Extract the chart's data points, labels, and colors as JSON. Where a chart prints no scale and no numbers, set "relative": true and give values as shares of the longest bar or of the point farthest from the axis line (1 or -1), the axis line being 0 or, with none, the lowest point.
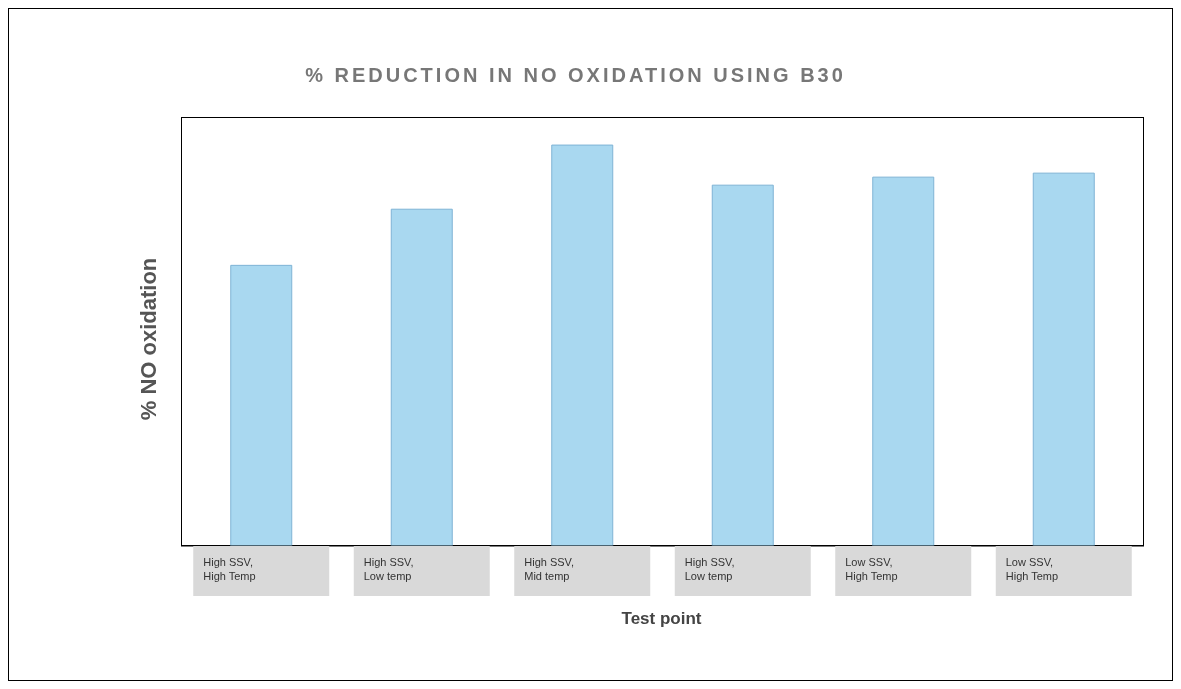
{
  "chart_data": {
    "type": "bar",
    "title": "% REDUCTION IN NO OXIDATION USING B30",
    "xlabel": "Test point",
    "ylabel": "% NO oxidation",
    "relative": true,
    "categories": [
      "High SSV, High Temp",
      "High SSV, Low temp",
      "High SSV, Mid temp",
      "High SSV, Low temp",
      "Low SSV, High Temp",
      "Low SSV, High Temp"
    ],
    "values": [
      0.7,
      0.84,
      1,
      0.9,
      0.92,
      0.93
    ],
    "color": "#a9d8f0",
    "grid": false
  }
}
